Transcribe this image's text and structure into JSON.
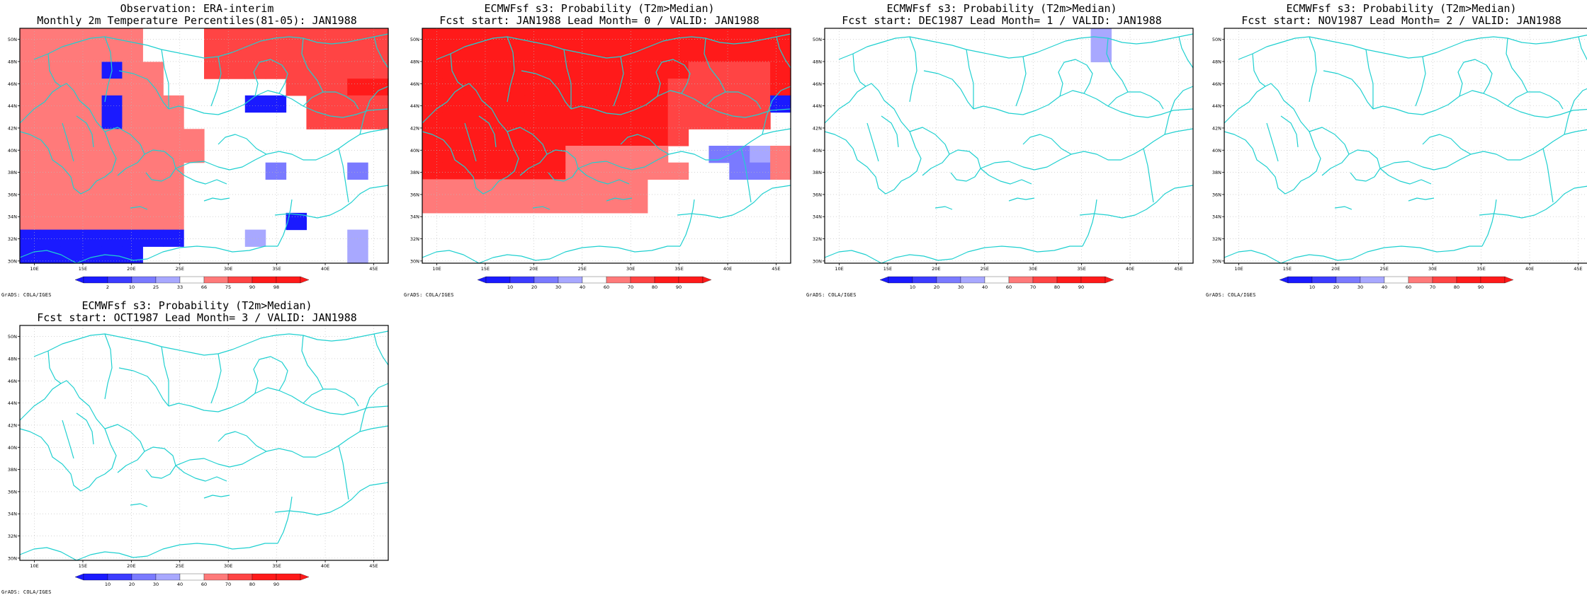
{
  "panels": [
    {
      "id": "obs",
      "title": [
        "Observation: ERA-interim",
        "Monthly 2m Temperature Percentiles(81-05): JAN1988"
      ],
      "legend": [
        "2",
        "10",
        "25",
        "33",
        "66",
        "75",
        "90",
        "98"
      ],
      "cells": [
        "555555000666666666",
        "555555000666666666",
        "555545500666666666",
        "555555500000066677",
        "555545550004406666",
        "555545550000006666",
        "555555555000000000",
        "555555555000000000",
        "555555550000200020",
        "555555550000000000",
        "555555550000000000",
        "555555550000040000",
        "444444440001000010",
        "444444000000000010"
      ]
    },
    {
      "id": "lead0",
      "title": [
        "ECMWFsf s3: Probability (T2m>Median)",
        "Fcst start: JAN1988  Lead Month= 0 / VALID: JAN1988"
      ],
      "legend": [
        "10",
        "20",
        "30",
        "40",
        "60",
        "70",
        "80",
        "90"
      ],
      "cells": [
        "777777777777777777",
        "777777777777777777",
        "777777777777766667",
        "777777777777666667",
        "777777777777666664",
        "777777777777666660",
        "777777777777600000",
        "777777755555002215",
        "777777755555500225",
        "555555555550000000",
        "555555555550000000",
        "000000000000000000",
        "000000000000000000",
        "000000000000000000"
      ]
    },
    {
      "id": "lead1",
      "title": [
        "ECMWFsf s3: Probability (T2m>Median)",
        "Fcst start: DEC1987  Lead Month= 1 / VALID: JAN1988"
      ],
      "legend": [
        "10",
        "20",
        "30",
        "40",
        "60",
        "70",
        "80",
        "90"
      ],
      "cells": [
        "000000000000010000",
        "000000000000010000",
        "000000000000000000",
        "000000000000000000",
        "000000000000000000",
        "000000000000000000",
        "000000000000000000",
        "000000000000000000",
        "000000000000000000",
        "000000000000000000",
        "000000000000000000",
        "000000000000000000",
        "000000000000000000",
        "000000000000000000"
      ]
    },
    {
      "id": "lead2",
      "title": [
        "ECMWFsf s3: Probability (T2m>Median)",
        "Fcst start: NOV1987  Lead Month= 2 / VALID: JAN1988"
      ],
      "legend": [
        "10",
        "20",
        "30",
        "40",
        "60",
        "70",
        "80",
        "90"
      ],
      "cells": [
        "000000000000000000",
        "000000000000000000",
        "000000000000000000",
        "000000000000000000",
        "000000000000000000",
        "000000000000000000",
        "000000000000000000",
        "000000000000000000",
        "000000000000000000",
        "000000000000000000",
        "000000000000000000",
        "000000000000000000",
        "000000000000000000",
        "000000000000000000"
      ]
    },
    {
      "id": "lead3",
      "title": [
        "ECMWFsf s3: Probability (T2m>Median)",
        "Fcst start: OCT1987  Lead Month= 3 / VALID: JAN1988"
      ],
      "legend": [
        "10",
        "20",
        "30",
        "40",
        "60",
        "70",
        "80",
        "90"
      ],
      "cells": [
        "000000000000000000",
        "000000000000000000",
        "000000000000000000",
        "000000000000000000",
        "000000000000000000",
        "000000000000000000",
        "000000000000000000",
        "000000000000000000",
        "000000000000000000",
        "000000000000000000",
        "000000000000000000",
        "000000000000000000",
        "000000000000000000",
        "000000000000000000"
      ]
    }
  ],
  "lat_labels": [
    "50N",
    "48N",
    "46N",
    "44N",
    "42N",
    "40N",
    "38N",
    "36N",
    "34N",
    "32N",
    "30N"
  ],
  "lon_labels": [
    "10E",
    "15E",
    "20E",
    "25E",
    "30E",
    "35E",
    "40E",
    "45E"
  ],
  "credit": "GrADS: COLA/IGES",
  "colors": {
    "c1": "#1a1aff",
    "c2": "#3c3cff",
    "c3": "#7a7aff",
    "c4": "#a8a8ff",
    "c5": "#ff4444",
    "c6": "#ff7a7a",
    "c7": "#ff1a1a",
    "blank": "#ffffff",
    "coast": "#1fd0d0",
    "grid": "#bbbbbb"
  }
}
